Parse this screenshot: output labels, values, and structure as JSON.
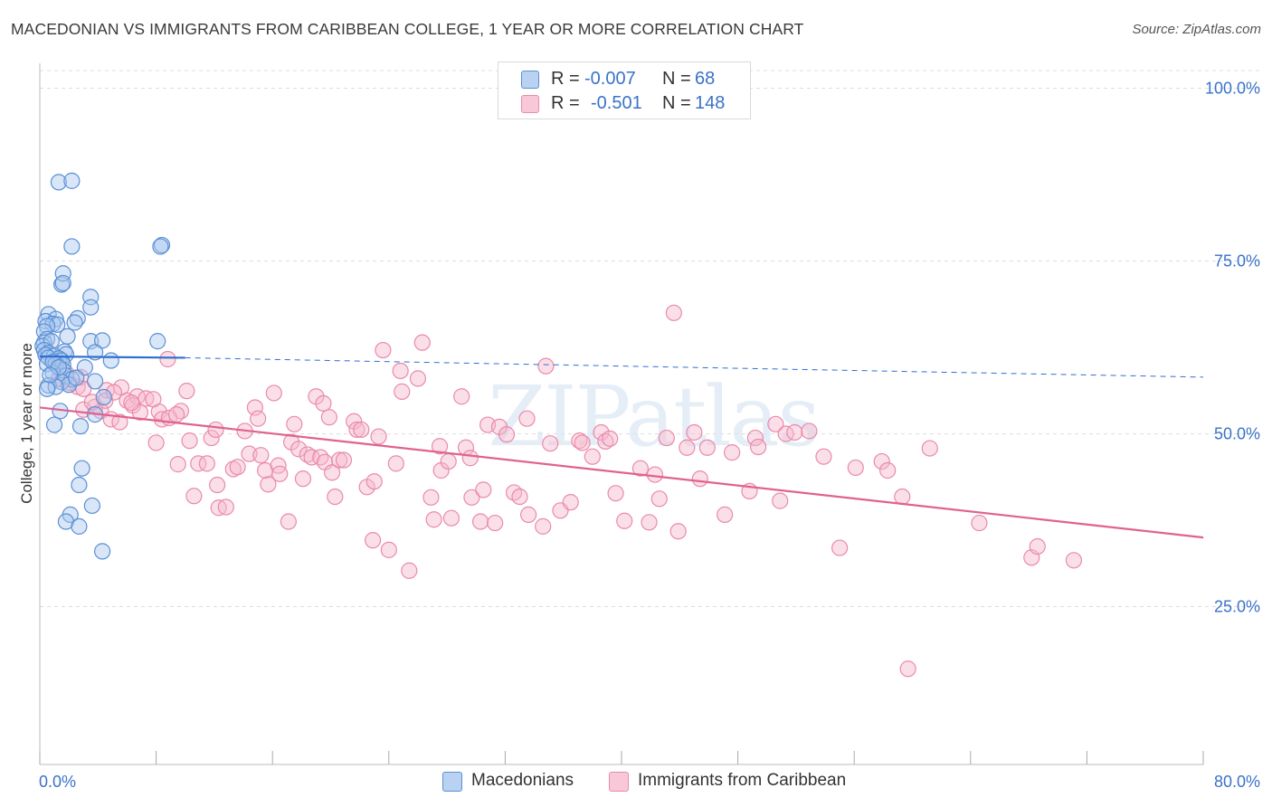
{
  "title": "MACEDONIAN VS IMMIGRANTS FROM CARIBBEAN COLLEGE, 1 YEAR OR MORE CORRELATION CHART",
  "source": "Source: ZipAtlas.com",
  "watermark": "ZIPatlas",
  "legend": {
    "rows": [
      {
        "r_label": "R =",
        "r_value": "-0.007",
        "n_label": "N =",
        "n_value": "68"
      },
      {
        "r_label": "R =",
        "r_value": "-0.501",
        "n_label": "N =",
        "n_value": "148"
      }
    ]
  },
  "bottom_legend": [
    "Macedonians",
    "Immigrants from Caribbean"
  ],
  "colors": {
    "blue_fill": "#a9c7ef",
    "blue_stroke": "#5a8fd6",
    "blue_line": "#2f6fcf",
    "pink_fill": "#f6b8cd",
    "pink_stroke": "#e98aaa",
    "pink_line": "#e0628f",
    "axis_label": "#3a72c9",
    "grid": "#dddddd"
  },
  "chart_data": {
    "type": "scatter",
    "xlabel": "",
    "ylabel": "College, 1 year or more",
    "xlim": [
      0,
      80
    ],
    "ylim": [
      0,
      105
    ],
    "x_tick_labels": [
      "0.0%",
      "80.0%"
    ],
    "y_ticks": [
      25,
      50,
      75,
      100
    ],
    "y_tick_labels": [
      "25.0%",
      "50.0%",
      "75.0%",
      "100.0%"
    ],
    "series": [
      {
        "name": "Macedonians",
        "color": "blue",
        "r": -0.007,
        "n": 68,
        "trend": {
          "x0": 0,
          "y0": 61.2,
          "x1": 10,
          "y1": 61.0,
          "dashed_to_x": 80,
          "dashed_to_y": 58.2
        },
        "points": [
          [
            1.3,
            86.4
          ],
          [
            2.2,
            86.6
          ],
          [
            2.2,
            77.1
          ],
          [
            8.4,
            77.3
          ],
          [
            8.3,
            77.1
          ],
          [
            1.5,
            71.6
          ],
          [
            1.6,
            73.2
          ],
          [
            1.6,
            71.8
          ],
          [
            3.5,
            69.8
          ],
          [
            3.5,
            68.3
          ],
          [
            0.6,
            67.3
          ],
          [
            1.1,
            66.6
          ],
          [
            2.6,
            66.7
          ],
          [
            0.4,
            66.3
          ],
          [
            0.9,
            65.9
          ],
          [
            1.2,
            65.8
          ],
          [
            0.5,
            65.6
          ],
          [
            2.4,
            66.1
          ],
          [
            0.3,
            64.8
          ],
          [
            1.9,
            64.1
          ],
          [
            0.5,
            63.7
          ],
          [
            0.3,
            63.2
          ],
          [
            0.2,
            62.7
          ],
          [
            0.8,
            63.4
          ],
          [
            3.5,
            63.4
          ],
          [
            4.3,
            63.5
          ],
          [
            8.1,
            63.4
          ],
          [
            0.3,
            62.1
          ],
          [
            0.6,
            61.7
          ],
          [
            1.7,
            61.9
          ],
          [
            1.8,
            61.5
          ],
          [
            3.8,
            61.8
          ],
          [
            0.4,
            61.4
          ],
          [
            1.0,
            61.3
          ],
          [
            0.6,
            61.0
          ],
          [
            1.3,
            60.9
          ],
          [
            1.5,
            60.6
          ],
          [
            0.5,
            60.1
          ],
          [
            1.1,
            60.2
          ],
          [
            1.6,
            60.0
          ],
          [
            4.9,
            60.6
          ],
          [
            3.1,
            59.6
          ],
          [
            1.6,
            59.2
          ],
          [
            0.9,
            58.8
          ],
          [
            1.8,
            58.4
          ],
          [
            2.2,
            57.9
          ],
          [
            3.8,
            57.6
          ],
          [
            1.5,
            57.5
          ],
          [
            0.6,
            57.0
          ],
          [
            2.0,
            57.1
          ],
          [
            1.1,
            56.8
          ],
          [
            0.5,
            56.5
          ],
          [
            4.4,
            55.3
          ],
          [
            1.4,
            53.3
          ],
          [
            3.8,
            52.8
          ],
          [
            1.0,
            51.3
          ],
          [
            2.8,
            51.1
          ],
          [
            2.9,
            45.0
          ],
          [
            2.7,
            42.6
          ],
          [
            3.6,
            39.6
          ],
          [
            2.1,
            38.3
          ],
          [
            1.8,
            37.3
          ],
          [
            2.7,
            36.6
          ],
          [
            4.3,
            33.0
          ],
          [
            0.9,
            60.4
          ],
          [
            1.3,
            59.6
          ],
          [
            2.5,
            58.1
          ],
          [
            0.7,
            58.5
          ]
        ]
      },
      {
        "name": "Immigrants from Caribbean",
        "color": "pink",
        "r": -0.501,
        "n": 148,
        "trend": {
          "x0": 0,
          "y0": 53.8,
          "x1": 80,
          "y1": 35.0
        },
        "points": [
          [
            1.0,
            60.2
          ],
          [
            1.8,
            58.8
          ],
          [
            1.4,
            57.9
          ],
          [
            2.6,
            56.8
          ],
          [
            2.0,
            57.4
          ],
          [
            4.6,
            56.3
          ],
          [
            3.8,
            53.9
          ],
          [
            4.2,
            53.3
          ],
          [
            3.0,
            53.5
          ],
          [
            4.9,
            52.1
          ],
          [
            5.5,
            51.7
          ],
          [
            4.5,
            54.8
          ],
          [
            5.6,
            56.7
          ],
          [
            6.0,
            54.8
          ],
          [
            6.7,
            55.4
          ],
          [
            6.4,
            54.1
          ],
          [
            6.9,
            53.1
          ],
          [
            7.3,
            55.1
          ],
          [
            8.2,
            53.2
          ],
          [
            8.4,
            52.1
          ],
          [
            8.8,
            60.8
          ],
          [
            9.7,
            53.3
          ],
          [
            10.1,
            56.2
          ],
          [
            10.3,
            49.0
          ],
          [
            8.0,
            48.7
          ],
          [
            9.5,
            45.6
          ],
          [
            10.6,
            41.0
          ],
          [
            10.9,
            45.7
          ],
          [
            11.8,
            49.4
          ],
          [
            11.5,
            45.7
          ],
          [
            12.1,
            50.6
          ],
          [
            12.2,
            42.6
          ],
          [
            12.3,
            39.3
          ],
          [
            12.8,
            39.4
          ],
          [
            13.3,
            44.9
          ],
          [
            13.6,
            45.2
          ],
          [
            14.1,
            50.4
          ],
          [
            14.4,
            47.1
          ],
          [
            14.8,
            53.8
          ],
          [
            15.0,
            52.2
          ],
          [
            15.2,
            46.9
          ],
          [
            15.7,
            42.7
          ],
          [
            15.5,
            44.7
          ],
          [
            16.1,
            55.9
          ],
          [
            16.4,
            45.4
          ],
          [
            16.5,
            44.2
          ],
          [
            17.1,
            37.3
          ],
          [
            17.3,
            48.8
          ],
          [
            17.5,
            51.4
          ],
          [
            17.8,
            47.8
          ],
          [
            18.1,
            43.5
          ],
          [
            18.4,
            47.0
          ],
          [
            18.7,
            46.6
          ],
          [
            19.0,
            55.4
          ],
          [
            19.3,
            46.6
          ],
          [
            19.5,
            54.4
          ],
          [
            19.6,
            45.9
          ],
          [
            19.9,
            52.4
          ],
          [
            20.1,
            44.4
          ],
          [
            20.3,
            40.9
          ],
          [
            20.6,
            46.2
          ],
          [
            20.9,
            46.2
          ],
          [
            21.6,
            51.8
          ],
          [
            21.8,
            50.6
          ],
          [
            22.1,
            50.6
          ],
          [
            22.5,
            42.3
          ],
          [
            22.9,
            34.6
          ],
          [
            23.0,
            43.1
          ],
          [
            23.3,
            49.6
          ],
          [
            23.6,
            62.1
          ],
          [
            24.0,
            33.2
          ],
          [
            24.5,
            45.7
          ],
          [
            24.8,
            59.1
          ],
          [
            24.9,
            56.1
          ],
          [
            25.4,
            30.2
          ],
          [
            26.0,
            58.0
          ],
          [
            26.3,
            63.2
          ],
          [
            26.9,
            40.8
          ],
          [
            27.1,
            37.6
          ],
          [
            27.5,
            48.2
          ],
          [
            27.6,
            44.7
          ],
          [
            28.1,
            46.0
          ],
          [
            28.3,
            37.8
          ],
          [
            29.0,
            55.4
          ],
          [
            29.3,
            48.0
          ],
          [
            29.6,
            46.5
          ],
          [
            29.7,
            40.8
          ],
          [
            30.3,
            37.3
          ],
          [
            30.5,
            41.9
          ],
          [
            30.8,
            51.3
          ],
          [
            31.3,
            37.1
          ],
          [
            31.6,
            51.0
          ],
          [
            32.1,
            49.9
          ],
          [
            32.6,
            41.5
          ],
          [
            33.0,
            40.9
          ],
          [
            33.5,
            52.2
          ],
          [
            33.6,
            38.3
          ],
          [
            34.6,
            36.6
          ],
          [
            34.8,
            59.8
          ],
          [
            35.1,
            48.6
          ],
          [
            35.8,
            38.9
          ],
          [
            36.5,
            40.1
          ],
          [
            37.1,
            49.0
          ],
          [
            37.3,
            48.7
          ],
          [
            38.0,
            46.7
          ],
          [
            38.6,
            50.2
          ],
          [
            38.9,
            48.9
          ],
          [
            39.2,
            49.3
          ],
          [
            39.6,
            41.4
          ],
          [
            40.2,
            37.4
          ],
          [
            41.3,
            45.0
          ],
          [
            41.9,
            37.2
          ],
          [
            42.3,
            44.1
          ],
          [
            42.6,
            40.6
          ],
          [
            43.1,
            49.4
          ],
          [
            43.6,
            67.5
          ],
          [
            43.9,
            35.9
          ],
          [
            44.5,
            48.0
          ],
          [
            45.0,
            50.2
          ],
          [
            45.4,
            43.5
          ],
          [
            45.9,
            48.0
          ],
          [
            47.1,
            38.3
          ],
          [
            47.6,
            47.3
          ],
          [
            48.8,
            41.7
          ],
          [
            49.2,
            49.4
          ],
          [
            49.4,
            48.1
          ],
          [
            50.6,
            51.4
          ],
          [
            50.9,
            40.3
          ],
          [
            51.3,
            50.0
          ],
          [
            51.9,
            50.2
          ],
          [
            52.9,
            50.4
          ],
          [
            53.9,
            46.7
          ],
          [
            55.0,
            33.5
          ],
          [
            56.1,
            45.1
          ],
          [
            57.9,
            46.0
          ],
          [
            58.3,
            44.7
          ],
          [
            59.3,
            40.9
          ],
          [
            59.7,
            16.0
          ],
          [
            61.2,
            47.9
          ],
          [
            64.6,
            37.1
          ],
          [
            68.2,
            32.1
          ],
          [
            68.6,
            33.7
          ],
          [
            71.1,
            31.7
          ],
          [
            5.1,
            56.0
          ],
          [
            6.3,
            54.5
          ],
          [
            7.8,
            55.0
          ],
          [
            8.9,
            52.3
          ],
          [
            9.4,
            52.8
          ],
          [
            3.6,
            54.6
          ],
          [
            2.8,
            58.2
          ],
          [
            1.3,
            58.0
          ],
          [
            3.0,
            56.5
          ]
        ]
      }
    ]
  }
}
